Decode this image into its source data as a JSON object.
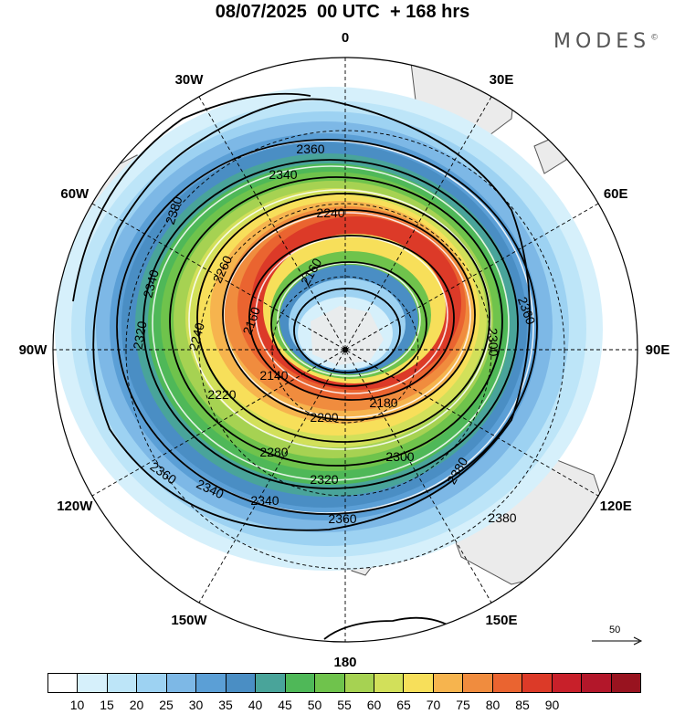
{
  "title": "08/07/2025  00 UTC  + 168 hrs",
  "brand": "MODES",
  "brand_mark": "©",
  "longitude_labels": [
    {
      "text": "0",
      "lon": 0
    },
    {
      "text": "30E",
      "lon": 30
    },
    {
      "text": "60E",
      "lon": 60
    },
    {
      "text": "90E",
      "lon": 90
    },
    {
      "text": "120E",
      "lon": 120
    },
    {
      "text": "150E",
      "lon": 150
    },
    {
      "text": "180",
      "lon": 180
    },
    {
      "text": "150W",
      "lon": 210
    },
    {
      "text": "120W",
      "lon": 240
    },
    {
      "text": "90W",
      "lon": 270
    },
    {
      "text": "60W",
      "lon": 300
    },
    {
      "text": "30W",
      "lon": 330
    }
  ],
  "contour_labels": [
    "2360",
    "2380",
    "2340",
    "2240",
    "2160",
    "2260",
    "2340",
    "2320",
    "2240",
    "2160",
    "2140",
    "2300",
    "2220",
    "2200",
    "2180",
    "2280",
    "2300",
    "2360",
    "2320",
    "2340",
    "2340",
    "2360",
    "2360",
    "2380",
    "2380"
  ],
  "reference_vector": {
    "label": "50"
  },
  "colorbar": {
    "colors": [
      "#ffffff",
      "#d6f0fb",
      "#bde5f8",
      "#9dd2f2",
      "#7db8e6",
      "#5b9fd6",
      "#4a8ec4",
      "#49a49a",
      "#4fb858",
      "#6fc34c",
      "#a6d252",
      "#d2e05a",
      "#f7df5a",
      "#f6b44e",
      "#f08c3e",
      "#ea6430",
      "#dc3a28",
      "#c8202a",
      "#b3172a",
      "#98131f"
    ],
    "labels": [
      "10",
      "15",
      "20",
      "25",
      "30",
      "35",
      "40",
      "45",
      "50",
      "55",
      "60",
      "65",
      "70",
      "75",
      "80",
      "85",
      "90"
    ]
  }
}
